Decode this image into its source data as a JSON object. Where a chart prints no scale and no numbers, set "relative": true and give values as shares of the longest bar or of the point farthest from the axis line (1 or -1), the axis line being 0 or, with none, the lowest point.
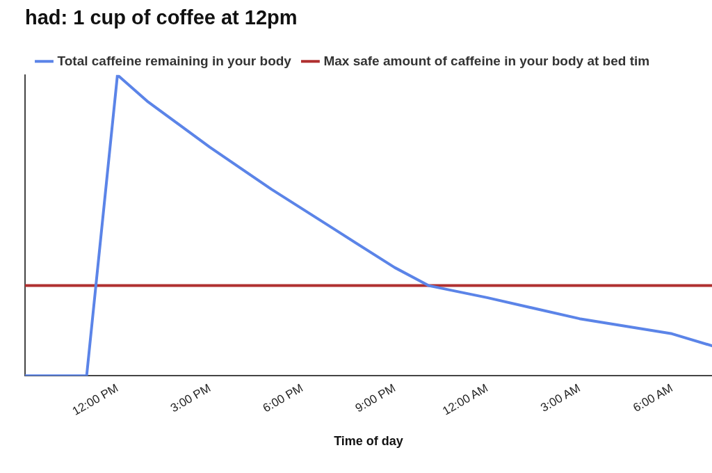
{
  "chart_data": {
    "type": "line",
    "title": "had: 1 cup of coffee at 12pm",
    "xlabel": "Time of day",
    "relative": true,
    "xlim": [
      "--01-01T09:00",
      "--01-02T07:18"
    ],
    "xticks": [
      {
        "value": "--01-01T09:00",
        "label": null
      },
      {
        "value": "--01-01T12:00",
        "label": "12:00 PM"
      },
      {
        "value": "--01-01T15:00",
        "label": "3:00 PM"
      },
      {
        "value": "--01-01T18:00",
        "label": "6:00 PM"
      },
      {
        "value": "--01-01T21:00",
        "label": "9:00 PM"
      },
      {
        "value": "--01-02T00:00",
        "label": "12:00 AM"
      },
      {
        "value": "--01-02T03:00",
        "label": "3:00 AM"
      },
      {
        "value": "--01-02T06:00",
        "label": "6:00 AM"
      }
    ],
    "x": [
      "--01-01T09:00",
      "--01-01T11:00",
      "--01-01T12:00",
      "--01-01T13:00",
      "--01-01T15:00",
      "--01-01T17:00",
      "--01-01T19:00",
      "--01-01T21:00",
      "--01-01T22:06",
      "--01-02T00:00",
      "--01-02T03:00",
      "--01-02T06:00",
      "--01-02T07:18"
    ],
    "series": [
      {
        "name": "Total caffeine remaining in your body",
        "color": "#5b84e8",
        "values": [
          0,
          0,
          1,
          0.91,
          0.76,
          0.62,
          0.49,
          0.36,
          0.3,
          0.26,
          0.19,
          0.14,
          0.1
        ]
      }
    ],
    "ref_lines": [
      {
        "axis": "y",
        "value": 0.3,
        "label": "Max safe amount of caffeine in your body at bed tim",
        "color": "#b03030"
      }
    ],
    "grid": false,
    "legend": "top left",
    "marker": "none",
    "line_style": "solid"
  }
}
